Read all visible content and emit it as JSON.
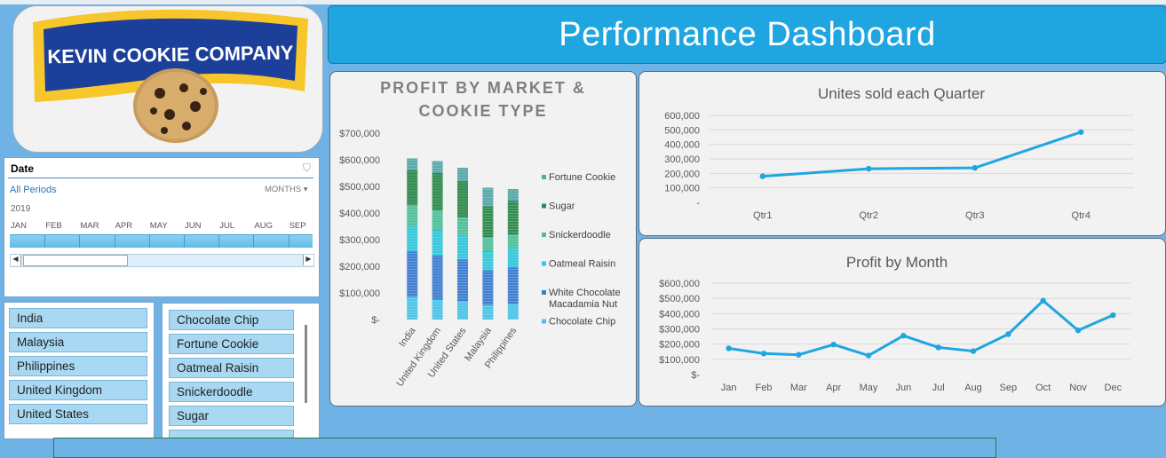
{
  "title": "Performance Dashboard",
  "logo": {
    "text": "KEVIN COOKIE COMPANY"
  },
  "timeline": {
    "header": "Date",
    "period": "All Periods",
    "unit": "MONTHS",
    "year": "2019",
    "months": [
      "JAN",
      "FEB",
      "MAR",
      "APR",
      "MAY",
      "JUN",
      "JUL",
      "AUG",
      "SEP"
    ]
  },
  "market_slicer": {
    "items": [
      "India",
      "Malaysia",
      "Philippines",
      "United Kingdom",
      "United States"
    ]
  },
  "cookie_slicer": {
    "items": [
      "Chocolate Chip",
      "Fortune Cookie",
      "Oatmeal Raisin",
      "Snickerdoodle",
      "Sugar"
    ]
  },
  "colors": {
    "accent": "#1fa6e0",
    "line": "#1fa6e0"
  },
  "chart_data": [
    {
      "type": "bar",
      "stacked": true,
      "title": "PROFIT BY MARKET & COOKIE TYPE",
      "categories": [
        "India",
        "United Kingdom",
        "United States",
        "Malaysia",
        "Philippines"
      ],
      "yticks": [
        "$700,000",
        "$600,000",
        "$500,000",
        "$400,000",
        "$300,000",
        "$200,000",
        "$100,000",
        "$-"
      ],
      "ylim": [
        0,
        700000
      ],
      "series": [
        {
          "name": "Chocolate Chip",
          "color": "#4dc3e6",
          "values": [
            85000,
            75000,
            70000,
            55000,
            60000
          ]
        },
        {
          "name": "White Chocolate Macadamia Nut",
          "color": "#3f7fd1",
          "values": [
            170000,
            165000,
            155000,
            130000,
            135000
          ]
        },
        {
          "name": "Oatmeal Raisin",
          "color": "#34c6d9",
          "values": [
            95000,
            95000,
            90000,
            70000,
            75000
          ]
        },
        {
          "name": "Snickerdoodle",
          "color": "#4fbf9a",
          "values": [
            80000,
            75000,
            70000,
            55000,
            50000
          ]
        },
        {
          "name": "Sugar",
          "color": "#2e8a4e",
          "values": [
            130000,
            140000,
            135000,
            115000,
            125000
          ]
        },
        {
          "name": "Fortune Cookie",
          "color": "#58a7a9",
          "values": [
            45000,
            45000,
            50000,
            70000,
            45000
          ]
        }
      ],
      "legend_order": [
        "Fortune Cookie",
        "Sugar",
        "Snickerdoodle",
        "Oatmeal Raisin",
        "White Chocolate Macadamia Nut",
        "Chocolate Chip"
      ],
      "legend_labels": [
        "Fortune Cookie",
        "Sugar",
        "Snickerdoodle",
        "Oatmeal Raisin",
        "White Chocolate\nMacadamia Nut",
        "Chocolate Chip"
      ],
      "legend": "right"
    },
    {
      "type": "line",
      "title": "Unites sold each Quarter",
      "categories": [
        "Qtr1",
        "Qtr2",
        "Qtr3",
        "Qtr4"
      ],
      "values": [
        180000,
        232000,
        238000,
        485000
      ],
      "yticks": [
        "600,000",
        "500,000",
        "400,000",
        "300,000",
        "200,000",
        "100,000",
        "-"
      ],
      "ylim": [
        0,
        600000
      ],
      "grid": true
    },
    {
      "type": "line",
      "title": "Profit by Month",
      "categories": [
        "Jan",
        "Feb",
        "Mar",
        "Apr",
        "May",
        "Jun",
        "Jul",
        "Aug",
        "Sep",
        "Oct",
        "Nov",
        "Dec"
      ],
      "values": [
        172000,
        138000,
        130000,
        197000,
        125000,
        255000,
        178000,
        154000,
        265000,
        485000,
        290000,
        390000
      ],
      "yticks": [
        "$600,000",
        "$500,000",
        "$400,000",
        "$300,000",
        "$200,000",
        "$100,000",
        "$-"
      ],
      "ylim": [
        0,
        600000
      ],
      "grid": true
    }
  ]
}
